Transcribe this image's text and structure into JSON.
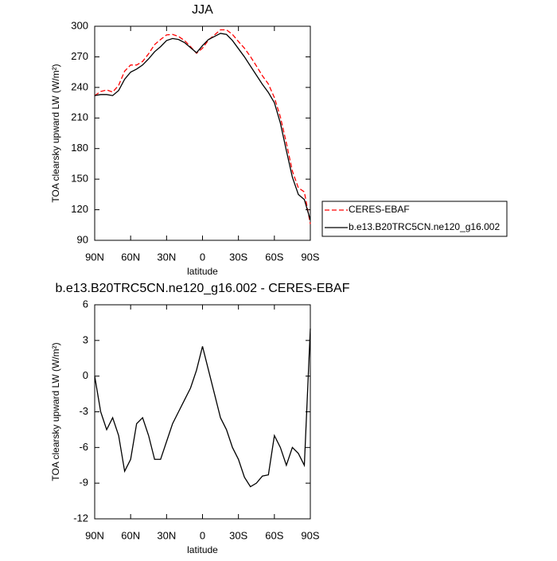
{
  "chart_data": [
    {
      "type": "line",
      "title": "JJA",
      "xlabel": "latitude",
      "ylabel": "TOA clearsky upward LW (W/m²)",
      "x": [
        90,
        85,
        80,
        75,
        70,
        65,
        60,
        55,
        50,
        45,
        40,
        35,
        30,
        25,
        20,
        15,
        10,
        5,
        0,
        -5,
        -10,
        -15,
        -20,
        -25,
        -30,
        -35,
        -40,
        -45,
        -50,
        -55,
        -60,
        -65,
        -70,
        -75,
        -80,
        -85,
        -90
      ],
      "xlim": [
        90,
        -90
      ],
      "xticks": [
        {
          "value": 90,
          "label": "90N"
        },
        {
          "value": 60,
          "label": "60N"
        },
        {
          "value": 30,
          "label": "30N"
        },
        0,
        {
          "value": -30,
          "label": "30S"
        },
        {
          "value": -60,
          "label": "60S"
        },
        {
          "value": -90,
          "label": "90S"
        }
      ],
      "ylim": [
        90,
        300
      ],
      "yticks": [
        90,
        120,
        150,
        180,
        210,
        240,
        270,
        300
      ],
      "legend": "right",
      "series": [
        {
          "name": "CERES-EBAF",
          "color": "#ff0000",
          "dash": true,
          "values": [
            232,
            236,
            237.5,
            235.5,
            242,
            256,
            262,
            262,
            265.5,
            273,
            282,
            287,
            291.5,
            292,
            290,
            286,
            280,
            273.5,
            278.5,
            286.5,
            291.5,
            296.5,
            296.5,
            292,
            285,
            278.5,
            270.3,
            261,
            251.4,
            243.3,
            230,
            211,
            185.5,
            158,
            141.5,
            137.5,
            106
          ]
        },
        {
          "name": "b.e13.B20TRC5CN.ne120_g16.002",
          "color": "#000000",
          "dash": false,
          "values": [
            232,
            233,
            233,
            232,
            237,
            248,
            255,
            258,
            262,
            268,
            275,
            280,
            286,
            288,
            287,
            284,
            279,
            274,
            281,
            287,
            290,
            293,
            292,
            286,
            278,
            270,
            261,
            252,
            243,
            235,
            225,
            205,
            178,
            152,
            135,
            130,
            110
          ]
        }
      ]
    },
    {
      "type": "line",
      "title": "b.e13.B20TRC5CN.ne120_g16.002 - CERES-EBAF",
      "xlabel": "latitude",
      "ylabel": "TOA clearsky upward LW (W/m²)",
      "x": [
        90,
        85,
        80,
        75,
        70,
        65,
        60,
        55,
        50,
        45,
        40,
        35,
        30,
        25,
        20,
        15,
        10,
        5,
        0,
        -5,
        -10,
        -15,
        -20,
        -25,
        -30,
        -35,
        -40,
        -45,
        -50,
        -55,
        -60,
        -65,
        -70,
        -75,
        -80,
        -85,
        -90
      ],
      "xlim": [
        90,
        -90
      ],
      "xticks": [
        {
          "value": 90,
          "label": "90N"
        },
        {
          "value": 60,
          "label": "60N"
        },
        {
          "value": 30,
          "label": "30N"
        },
        0,
        {
          "value": -30,
          "label": "30S"
        },
        {
          "value": -60,
          "label": "60S"
        },
        {
          "value": -90,
          "label": "90S"
        }
      ],
      "ylim": [
        -12,
        6
      ],
      "yticks": [
        -12,
        -9,
        -6,
        -3,
        0,
        3,
        6
      ],
      "series": [
        {
          "color": "#000000",
          "dash": false,
          "values": [
            0,
            -3,
            -4.5,
            -3.5,
            -5,
            -8,
            -7,
            -4,
            -3.5,
            -5,
            -7,
            -7,
            -5.5,
            -4,
            -3,
            -2,
            -1,
            0.5,
            2.5,
            0.5,
            -1.5,
            -3.5,
            -4.5,
            -6,
            -7,
            -8.5,
            -9.3,
            -9,
            -8.4,
            -8.3,
            -5,
            -6,
            -7.5,
            -6,
            -6.5,
            -7.5,
            4
          ]
        }
      ]
    }
  ]
}
